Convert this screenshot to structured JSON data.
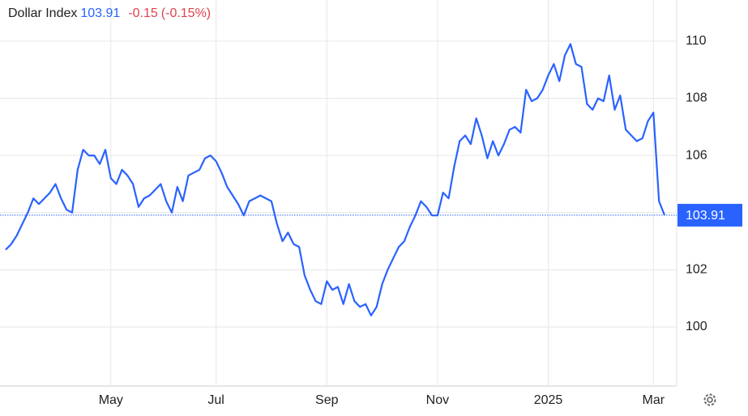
{
  "chart_data": {
    "type": "line",
    "title": "Dollar Index",
    "price": 103.91,
    "change": -0.15,
    "change_percent": {
      "value": -0.15,
      "label": "(-0.15%)"
    },
    "categories": [
      null,
      null,
      null,
      null,
      null,
      null,
      null,
      null,
      null,
      null,
      null,
      null,
      null,
      null,
      null,
      null,
      null,
      null,
      null,
      "May",
      null,
      null,
      null,
      null,
      null,
      null,
      null,
      null,
      null,
      null,
      null,
      null,
      null,
      null,
      null,
      null,
      null,
      null,
      "Jul",
      null,
      null,
      null,
      null,
      null,
      null,
      null,
      null,
      null,
      null,
      null,
      null,
      null,
      null,
      null,
      null,
      null,
      null,
      null,
      "Sep",
      null,
      null,
      null,
      null,
      null,
      null,
      null,
      null,
      null,
      null,
      null,
      null,
      null,
      null,
      null,
      null,
      null,
      null,
      null,
      "Nov",
      null,
      null,
      null,
      null,
      null,
      null,
      null,
      null,
      null,
      null,
      null,
      null,
      null,
      null,
      null,
      null,
      null,
      null,
      null,
      "2025",
      null,
      null,
      null,
      null,
      null,
      null,
      null,
      null,
      null,
      null,
      null,
      null,
      null,
      null,
      null,
      null,
      null,
      null,
      "Mar",
      null,
      null
    ],
    "series": [
      {
        "color": "#2962ff",
        "values": [
          102.7,
          102.9,
          103.2,
          103.6,
          104.0,
          104.5,
          104.3,
          104.5,
          104.7,
          105.0,
          104.5,
          104.1,
          104.0,
          105.5,
          106.2,
          106.0,
          106.0,
          105.7,
          106.2,
          105.2,
          105.0,
          105.5,
          105.3,
          105.0,
          104.2,
          104.5,
          104.6,
          104.8,
          105.0,
          104.4,
          104.0,
          104.9,
          104.4,
          105.3,
          105.4,
          105.5,
          105.9,
          106.0,
          105.8,
          105.4,
          104.9,
          104.6,
          104.3,
          103.9,
          104.4,
          104.5,
          104.6,
          104.5,
          104.4,
          103.6,
          103.0,
          103.3,
          102.9,
          102.8,
          101.8,
          101.3,
          100.9,
          100.8,
          101.6,
          101.3,
          101.4,
          100.8,
          101.5,
          100.9,
          100.7,
          100.8,
          100.4,
          100.7,
          101.5,
          102.0,
          102.4,
          102.8,
          103.0,
          103.5,
          103.9,
          104.4,
          104.2,
          103.9,
          103.9,
          104.7,
          104.5,
          105.6,
          106.5,
          106.7,
          106.4,
          107.3,
          106.7,
          105.9,
          106.5,
          106.0,
          106.4,
          106.9,
          107.0,
          106.8,
          108.3,
          107.9,
          108.0,
          108.3,
          108.8,
          109.2,
          108.6,
          109.5,
          109.9,
          109.2,
          109.1,
          107.8,
          107.6,
          108.0,
          107.9,
          108.8,
          107.6,
          108.1,
          106.9,
          106.7,
          106.5,
          106.6,
          107.2,
          107.5,
          104.4,
          103.91
        ]
      }
    ],
    "ylim": [
      97.96,
      111.44
    ],
    "yticks": [
      100,
      102,
      104,
      106,
      108,
      110
    ],
    "grid": true
  }
}
